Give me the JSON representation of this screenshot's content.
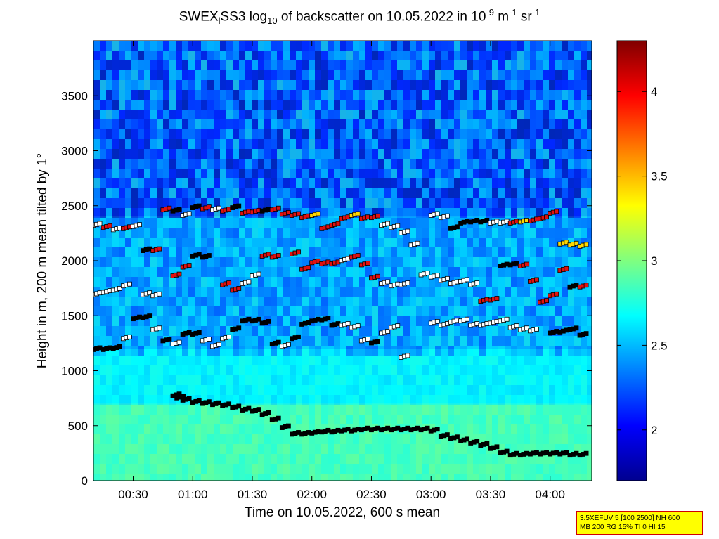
{
  "chart_data": {
    "type": "heatmap",
    "title_parts": {
      "a": "SWEX",
      "sub1": "l",
      "b": "SS3 log",
      "sub2": "10",
      "c": " of backscatter on 10.05.2022 in 10",
      "sup1": "-9",
      "d": " m",
      "sup2": "-1",
      "e": " sr",
      "sup3": "-1"
    },
    "xlabel": "Time on 10.05.2022, 600 s mean",
    "ylabel": "Height in m, 200 m mean tilted by 1°",
    "x_ticks": [
      "00:30",
      "01:00",
      "01:30",
      "02:00",
      "02:30",
      "03:00",
      "03:30",
      "04:00"
    ],
    "x_tick_minutes": [
      30,
      60,
      90,
      120,
      150,
      180,
      210,
      240
    ],
    "xlim_minutes": [
      10,
      261
    ],
    "y_ticks": [
      0,
      500,
      1000,
      1500,
      2000,
      2500,
      3000,
      3500
    ],
    "ylim": [
      0,
      4000
    ],
    "colorbar": {
      "ticks": [
        "2",
        "2.5",
        "3",
        "3.5",
        "4"
      ],
      "tick_values": [
        2,
        2.5,
        3,
        3.5,
        4
      ],
      "range": [
        1.7,
        4.3
      ],
      "colormap": "jet"
    },
    "background_field": {
      "description_levels": "log10 backscatter",
      "layers": [
        {
          "from_height": 0,
          "to_height": 700,
          "value": 2.85
        },
        {
          "from_height": 700,
          "to_height": 1200,
          "value": 2.65
        },
        {
          "from_height": 1200,
          "to_height": 2400,
          "value": 2.45
        },
        {
          "from_height": 2400,
          "to_height": 4000,
          "value": 2.25
        }
      ]
    },
    "series": [
      {
        "x": [
          10,
          12,
          14,
          16,
          18,
          20,
          25,
          30,
          35,
          40,
          45,
          50,
          52,
          55,
          60,
          65,
          70,
          75,
          80,
          85,
          90,
          95,
          100,
          105,
          110,
          115,
          120,
          125,
          130,
          135,
          140,
          145,
          150,
          155,
          160,
          165,
          170,
          175,
          180,
          185,
          190,
          195,
          200,
          205,
          210,
          215,
          220,
          225,
          230,
          235,
          240,
          245,
          250,
          255,
          260
        ],
        "y": [
          null,
          null,
          null,
          null,
          null,
          null,
          null,
          null,
          null,
          null,
          null,
          780,
          760,
          740,
          720,
          710,
          700,
          690,
          670,
          650,
          640,
          610,
          560,
          490,
          430,
          430,
          440,
          450,
          450,
          460,
          460,
          470,
          470,
          470,
          470,
          470,
          470,
          470,
          460,
          410,
          390,
          370,
          350,
          330,
          300,
          260,
          240,
          240,
          250,
          250,
          250,
          250,
          240,
          240,
          230
        ],
        "color_values": [
          null,
          null,
          null,
          null,
          null,
          null,
          null,
          null,
          null,
          null,
          null,
          2.7,
          2.7,
          2.5,
          1.9,
          1.9,
          1.9,
          1.9,
          1.9,
          1.9,
          1.9,
          1.9,
          1.9,
          1.9,
          1.9,
          1.9,
          1.9,
          1.9,
          1.9,
          1.9,
          1.9,
          1.9,
          1.9,
          1.9,
          1.9,
          1.9,
          1.9,
          1.9,
          1.9,
          1.9,
          1.9,
          1.9,
          1.9,
          1.9,
          1.9,
          1.9,
          1.9,
          1.9,
          1.9,
          1.9,
          1.9,
          1.9,
          1.9,
          1.9,
          2.7
        ]
      },
      {
        "x": [
          10,
          15,
          20,
          25,
          30,
          35,
          40,
          45,
          50,
          55,
          60,
          65,
          70,
          75,
          80,
          85,
          90,
          95,
          100,
          105,
          110,
          115,
          120,
          125,
          130,
          135,
          140,
          145,
          150,
          155,
          160,
          165,
          170,
          175,
          180,
          185,
          190,
          195,
          200,
          205,
          210,
          215,
          220,
          225,
          230,
          235,
          240,
          245,
          250,
          255,
          260
        ],
        "y": [
          1200,
          1200,
          1210,
          1300,
          1480,
          1490,
          1380,
          1280,
          1250,
          1340,
          1340,
          1280,
          1230,
          1300,
          1380,
          1460,
          1460,
          1440,
          1250,
          1230,
          1300,
          1430,
          1460,
          1470,
          1420,
          1420,
          1400,
          1280,
          1260,
          1350,
          1400,
          1130,
          null,
          null,
          1440,
          1420,
          1450,
          1460,
          1420,
          1420,
          1440,
          1460,
          1400,
          1380,
          1370,
          null,
          1350,
          1360,
          1380,
          1330,
          1320
        ],
        "color_values": [
          1.9,
          1.9,
          1.9,
          2.9,
          1.9,
          1.9,
          2.9,
          1.9,
          2.9,
          1.9,
          1.9,
          2.9,
          2.9,
          2.9,
          1.9,
          1.9,
          1.9,
          1.9,
          1.9,
          2.9,
          1.9,
          1.9,
          1.9,
          1.9,
          1.9,
          2.9,
          2.9,
          2.9,
          1.9,
          2.9,
          2.9,
          2.9,
          null,
          null,
          2.9,
          2.9,
          2.9,
          2.9,
          2.9,
          2.9,
          2.9,
          2.9,
          2.9,
          2.9,
          2.9,
          null,
          1.9,
          1.9,
          1.9,
          1.9,
          2.9
        ]
      },
      {
        "x": [
          10,
          15,
          20,
          25,
          30,
          35,
          40,
          45,
          50,
          55,
          60,
          65,
          70,
          75,
          80,
          85,
          90,
          95,
          100,
          105,
          110,
          115,
          120,
          125,
          130,
          135,
          140,
          145,
          150,
          155,
          160,
          165,
          170,
          175,
          180,
          185,
          190,
          195,
          200,
          205,
          210,
          215,
          220,
          225,
          230,
          235,
          240,
          245,
          250,
          255,
          260
        ],
        "y": [
          1700,
          1720,
          1740,
          1780,
          null,
          1700,
          1690,
          null,
          1870,
          1950,
          2050,
          2040,
          null,
          1790,
          1740,
          1800,
          1870,
          2050,
          2040,
          null,
          2070,
          1930,
          1990,
          1980,
          1980,
          2010,
          2040,
          1970,
          1850,
          1800,
          1780,
          1790,
          null,
          1880,
          1860,
          1830,
          1800,
          1820,
          1790,
          1640,
          1650,
          1960,
          1970,
          1960,
          1820,
          1630,
          1690,
          1920,
          1770,
          1770,
          1800
        ],
        "color_values": [
          2.9,
          2.9,
          2.9,
          2.9,
          null,
          2.9,
          2.9,
          null,
          4.1,
          4.1,
          1.9,
          1.9,
          null,
          4.1,
          4.1,
          2.9,
          2.9,
          4.1,
          4.1,
          null,
          4.1,
          4.1,
          4.1,
          4.1,
          4.1,
          2.9,
          4.1,
          4.1,
          4.1,
          2.9,
          2.9,
          2.9,
          null,
          2.9,
          2.9,
          2.9,
          2.9,
          2.9,
          2.9,
          4.1,
          4.1,
          1.9,
          1.9,
          4.1,
          4.1,
          4.1,
          4.1,
          4.1,
          1.9,
          4.1,
          2.9
        ]
      },
      {
        "x": [
          10,
          15,
          20,
          25,
          30,
          35,
          40,
          45,
          50,
          55,
          60,
          65,
          70,
          75,
          80,
          85,
          90,
          95,
          100,
          105,
          110,
          115,
          120,
          125,
          130,
          135,
          140,
          145,
          150,
          155,
          160,
          165,
          170,
          175,
          180,
          185,
          190,
          195,
          200,
          205,
          210,
          215,
          220,
          225,
          230,
          235,
          240,
          245,
          250,
          255,
          260
        ],
        "y": [
          2330,
          2310,
          2290,
          2300,
          2320,
          2100,
          2100,
          2470,
          2460,
          2420,
          2490,
          2480,
          2470,
          2460,
          2490,
          2440,
          2450,
          2460,
          2470,
          2430,
          2420,
          2400,
          2420,
          2300,
          2330,
          2390,
          2420,
          2390,
          2400,
          2330,
          2310,
          2260,
          2150,
          null,
          2420,
          2400,
          2300,
          2350,
          2360,
          2360,
          2350,
          2350,
          2350,
          2360,
          2370,
          2390,
          2440,
          2160,
          2150,
          2140,
          2130
        ],
        "color_values": [
          2.9,
          4.1,
          2.9,
          4.1,
          2.9,
          1.9,
          4.1,
          4.1,
          1.9,
          2.9,
          1.9,
          4.1,
          2.9,
          4.1,
          1.9,
          4.1,
          4.1,
          1.9,
          4.1,
          4.1,
          4.1,
          4.1,
          3.3,
          4.1,
          4.1,
          4.1,
          3.3,
          4.1,
          4.1,
          2.9,
          2.9,
          2.9,
          2.9,
          null,
          2.9,
          2.9,
          1.9,
          1.9,
          1.9,
          1.9,
          2.9,
          2.9,
          4.1,
          3.3,
          4.1,
          4.1,
          4.1,
          3.3,
          3.3,
          3.3,
          3.3
        ]
      }
    ]
  },
  "footer": {
    "line1": "3.5XEFUV 5 [100 2500] NH 600",
    "line2": "MB 200 RG 15% TI 0 HI 15",
    "bg_color": "#ffff00",
    "border_color": "#d00000"
  }
}
